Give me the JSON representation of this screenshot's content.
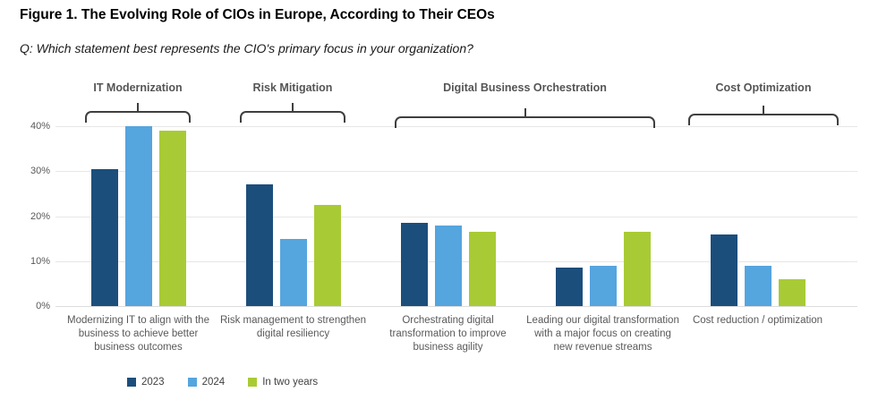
{
  "title": "Figure 1. The Evolving Role of CIOs in Europe, According to Their CEOs",
  "subtitle": "Q: Which statement best represents the CIO's primary focus in your organization?",
  "chart_data": {
    "type": "bar",
    "title": "Figure 1. The Evolving Role of CIOs in Europe, According to Their CEOs",
    "subtitle": "Q: Which statement best represents the CIO's primary focus in your organization?",
    "categories": [
      "Modernizing IT to align with the business to achieve better business outcomes",
      "Risk management to strengthen digital resiliency",
      "Orchestrating digital transformation to improve business agility",
      "Leading our digital transformation with a major focus on creating new revenue streams",
      "Cost reduction / optimization"
    ],
    "series": [
      {
        "name": "2023",
        "color": "#1C4E7C",
        "values": [
          30.5,
          27,
          18.5,
          8.5,
          16
        ]
      },
      {
        "name": "2024",
        "color": "#55A5DF",
        "values": [
          40,
          15,
          18,
          9,
          9
        ]
      },
      {
        "name": "In two years",
        "color": "#A8CB35",
        "values": [
          39,
          22.5,
          16.5,
          16.5,
          6
        ]
      }
    ],
    "group_headers": [
      {
        "label": "IT Modernization",
        "start_group": 0,
        "end_group": 0
      },
      {
        "label": "Risk Mitigation",
        "start_group": 1,
        "end_group": 1
      },
      {
        "label": "Digital Business Orchestration",
        "start_group": 2,
        "end_group": 3
      },
      {
        "label": "Cost Optimization",
        "start_group": 4,
        "end_group": 4
      }
    ],
    "yticks": [
      "0%",
      "10%",
      "20%",
      "30%",
      "40%"
    ],
    "ylim": [
      0,
      40
    ],
    "grid": true,
    "legend_position": "bottom",
    "xlabel": "",
    "ylabel": ""
  }
}
